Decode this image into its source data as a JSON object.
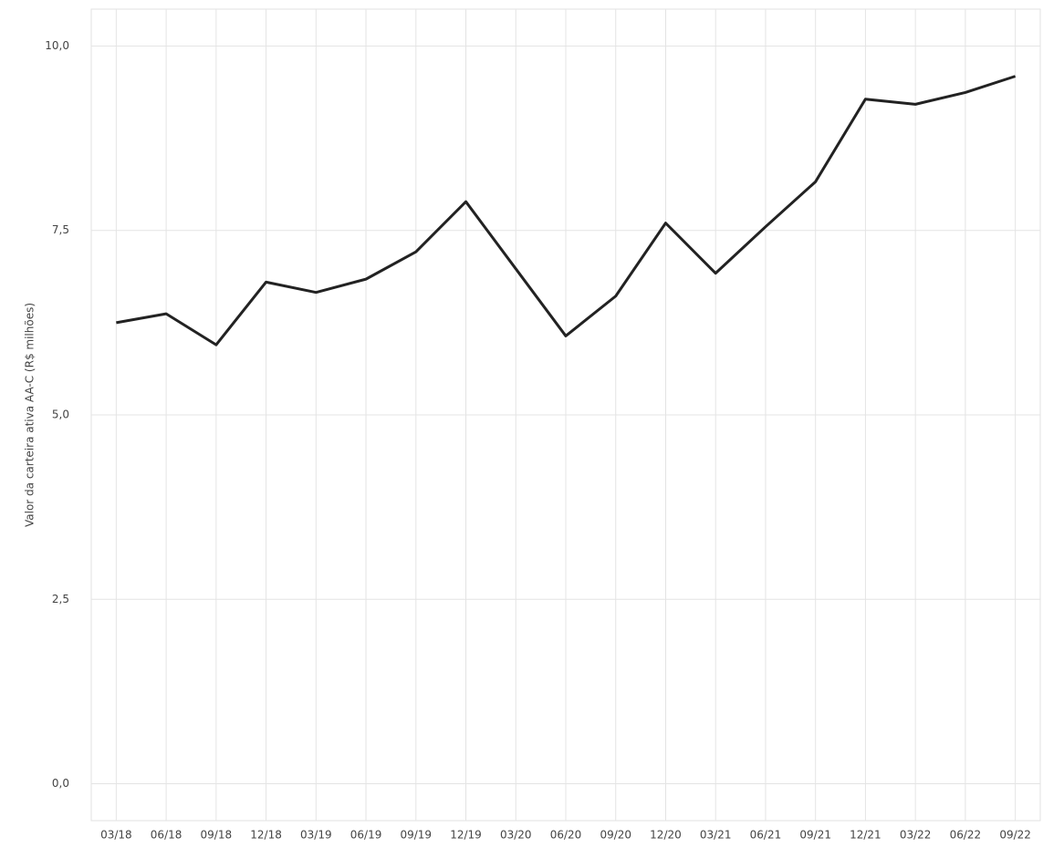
{
  "chart_data": {
    "type": "line",
    "y_label": "Valor da carteira ativa AA-C (R$ milhões)",
    "categories": [
      "03/18",
      "06/18",
      "09/18",
      "12/18",
      "03/19",
      "06/19",
      "09/19",
      "12/19",
      "03/20",
      "06/20",
      "09/20",
      "12/20",
      "03/21",
      "06/21",
      "09/21",
      "12/21",
      "03/22",
      "06/22",
      "09/22"
    ],
    "series": [
      {
        "name": "Valor da carteira ativa AA-C",
        "color": "#222222",
        "values": [
          6.25,
          6.37,
          5.95,
          6.8,
          6.66,
          6.84,
          7.21,
          7.89,
          6.98,
          6.07,
          6.61,
          7.6,
          6.92,
          7.55,
          8.16,
          9.28,
          9.21,
          9.37,
          9.59
        ]
      }
    ],
    "ylim": [
      -0.5,
      10.5
    ],
    "yticks": [
      {
        "value": 0,
        "label": "0,0"
      },
      {
        "value": 2.5,
        "label": "2,5"
      },
      {
        "value": 5,
        "label": "5,0"
      },
      {
        "value": 7.5,
        "label": "7,5"
      },
      {
        "value": 10,
        "label": "10,0"
      }
    ],
    "grid": true
  }
}
